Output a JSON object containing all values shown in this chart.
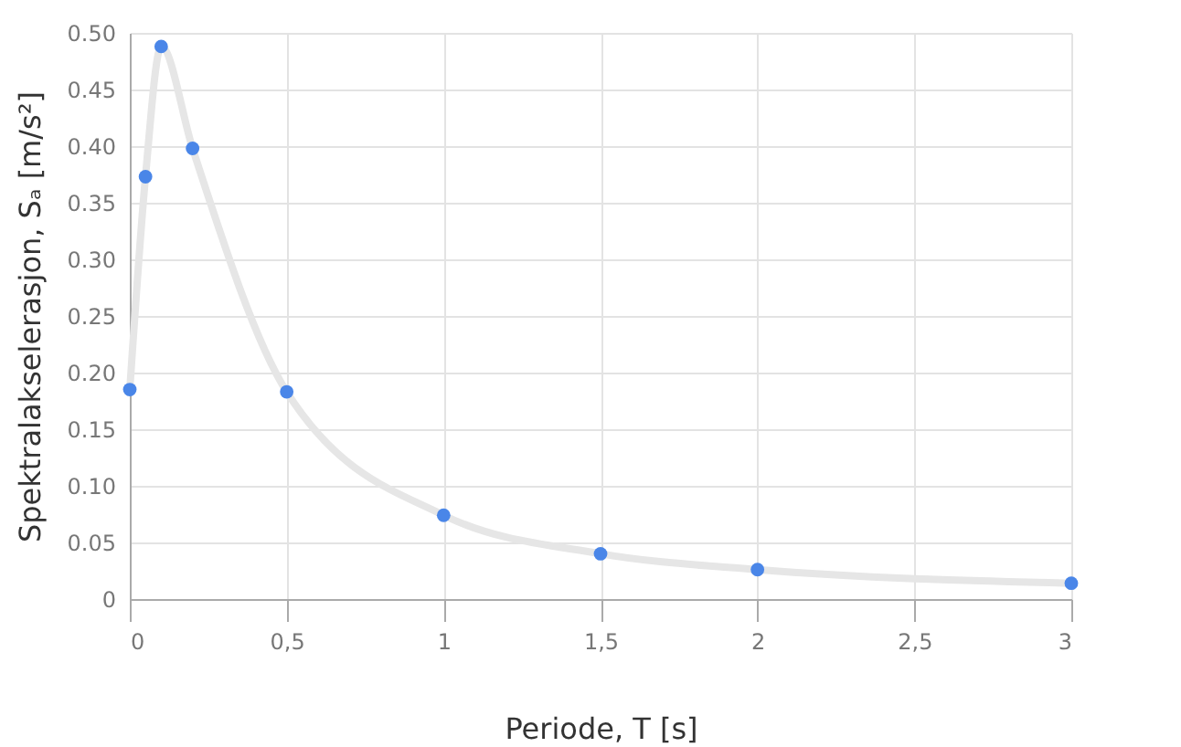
{
  "chart_data": {
    "type": "scatter",
    "xlabel": "Periode, T [s]",
    "ylabel": "Spektralakselerasjon, Sₐ [m/s²]",
    "xlim": [
      0,
      3
    ],
    "xticks": [
      0,
      {
        "value": 0.5,
        "label": "0,5"
      },
      1,
      {
        "value": 1.5,
        "label": "1,5"
      },
      2,
      {
        "value": 2.5,
        "label": "2,5"
      },
      3
    ],
    "ylim": [
      0,
      0.5
    ],
    "yticks": [
      0,
      0.05,
      {
        "value": 0.1,
        "label": "0.10"
      },
      0.15,
      {
        "value": 0.2,
        "label": "0.20"
      },
      0.25,
      {
        "value": 0.3,
        "label": "0.30"
      },
      0.35,
      {
        "value": 0.4,
        "label": "0.40"
      },
      0.45,
      {
        "value": 0.5,
        "label": "0.50"
      }
    ],
    "grid": true,
    "series": [
      {
        "type": "line",
        "marker": "none",
        "color": "#e6e6e6",
        "x": [
          0,
          0.05,
          0.1,
          0.2,
          0.5,
          1,
          1.5,
          2,
          3
        ],
        "values": [
          0.185,
          0.373,
          0.488,
          0.398,
          0.183,
          0.074,
          0.04,
          0.026,
          0.014
        ]
      },
      {
        "type": "scatter",
        "marker": "circle",
        "color": "#4a86e8",
        "x": [
          0,
          0.05,
          0.1,
          0.2,
          0.5,
          1,
          1.5,
          2,
          3
        ],
        "values": [
          0.185,
          0.373,
          0.488,
          0.398,
          0.183,
          0.074,
          0.04,
          0.026,
          0.014
        ]
      }
    ]
  }
}
